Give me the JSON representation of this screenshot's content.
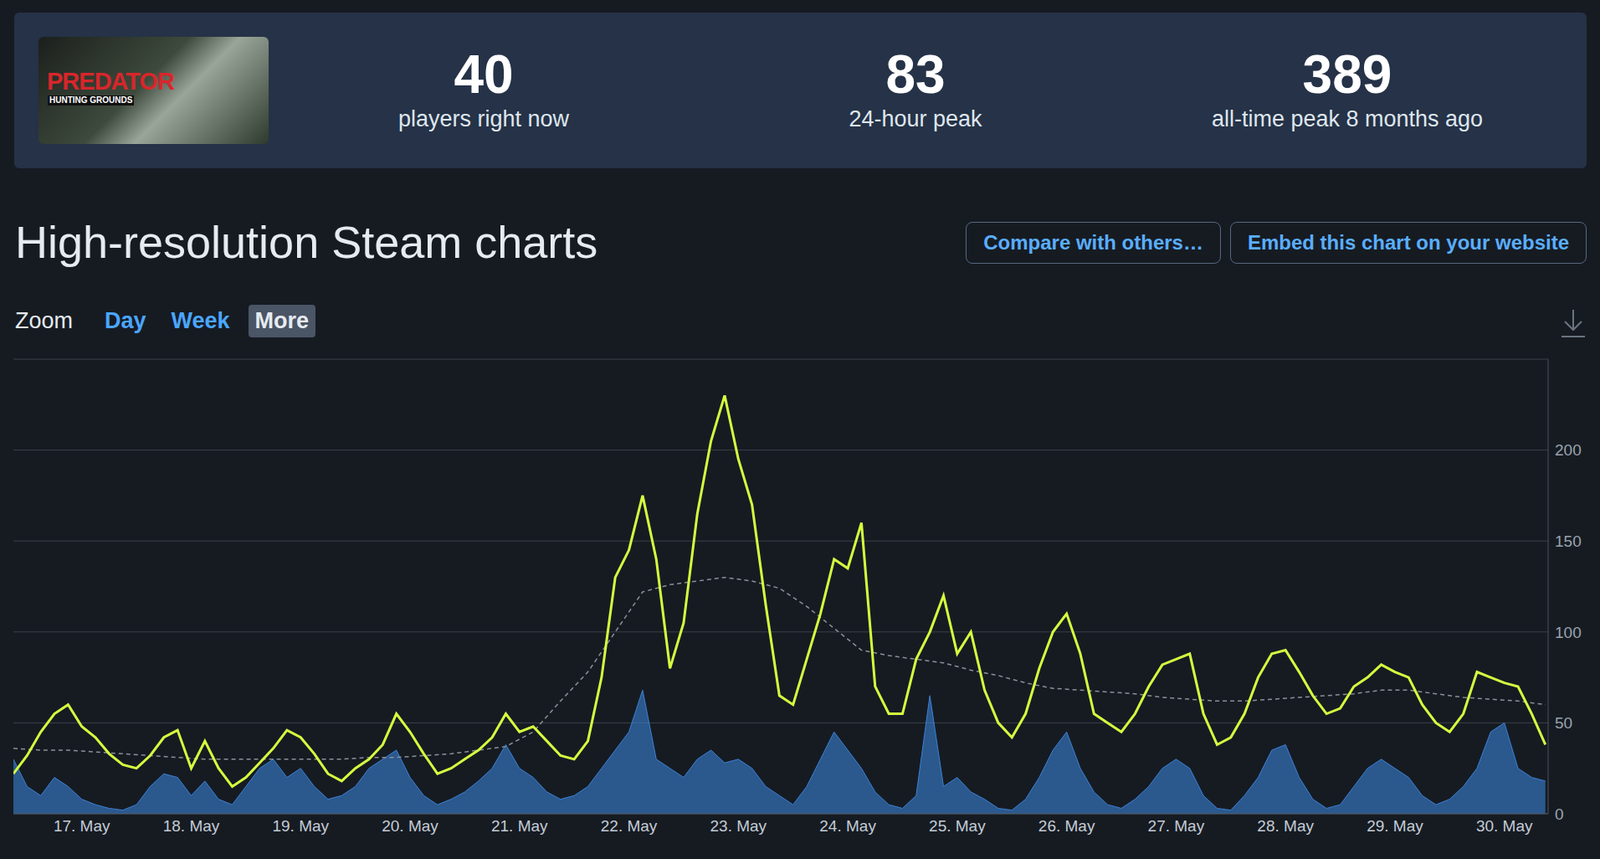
{
  "header": {
    "image_text": [
      "PREDATOR",
      "HUNTING GROUNDS"
    ],
    "stats": [
      {
        "value": 40,
        "label": "players right now"
      },
      {
        "value": 83,
        "label": "24-hour peak"
      },
      {
        "value": 389,
        "label": "all-time peak 8 months ago"
      }
    ]
  },
  "page": {
    "title": "High-resolution Steam charts",
    "buttons": [
      "Compare with others…",
      "Embed this chart on your website"
    ],
    "zoom_label": "Zoom",
    "zoom_options": [
      "Day",
      "Week",
      "More"
    ],
    "zoom_selected": "More"
  },
  "chart_data": {
    "type": "line",
    "x": [
      16.375,
      16.5,
      16.625,
      16.75,
      16.875,
      17,
      17.125,
      17.25,
      17.375,
      17.5,
      17.625,
      17.75,
      17.875,
      18,
      18.125,
      18.25,
      18.375,
      18.5,
      18.625,
      18.75,
      18.875,
      19,
      19.125,
      19.25,
      19.375,
      19.5,
      19.625,
      19.75,
      19.875,
      20,
      20.125,
      20.25,
      20.375,
      20.5,
      20.625,
      20.75,
      20.875,
      21,
      21.125,
      21.25,
      21.375,
      21.5,
      21.625,
      21.75,
      21.875,
      22,
      22.125,
      22.25,
      22.375,
      22.5,
      22.625,
      22.75,
      22.875,
      23,
      23.125,
      23.25,
      23.375,
      23.5,
      23.625,
      23.75,
      23.875,
      24,
      24.125,
      24.25,
      24.375,
      24.5,
      24.625,
      24.75,
      24.875,
      25,
      25.125,
      25.25,
      25.375,
      25.5,
      25.625,
      25.75,
      25.875,
      26,
      26.125,
      26.25,
      26.375,
      26.5,
      26.625,
      26.75,
      26.875,
      27,
      27.125,
      27.25,
      27.375,
      27.5,
      27.625,
      27.75,
      27.875,
      28,
      28.125,
      28.25,
      28.375,
      28.5,
      28.625,
      28.75,
      28.875,
      29,
      29.125,
      29.25,
      29.375,
      29.5,
      29.625,
      29.75,
      29.875,
      30,
      30.125,
      30.25,
      30.375
    ],
    "xlim": [
      16.375,
      30.4
    ],
    "xticks": [
      {
        "value": 17,
        "label": "17. May"
      },
      {
        "value": 18,
        "label": "18. May"
      },
      {
        "value": 19,
        "label": "19. May"
      },
      {
        "value": 20,
        "label": "20. May"
      },
      {
        "value": 21,
        "label": "21. May"
      },
      {
        "value": 22,
        "label": "22. May"
      },
      {
        "value": 23,
        "label": "23. May"
      },
      {
        "value": 24,
        "label": "24. May"
      },
      {
        "value": 25,
        "label": "25. May"
      },
      {
        "value": 26,
        "label": "26. May"
      },
      {
        "value": 27,
        "label": "27. May"
      },
      {
        "value": 28,
        "label": "28. May"
      },
      {
        "value": 29,
        "label": "29. May"
      },
      {
        "value": 30,
        "label": "30. May"
      }
    ],
    "ylim": [
      0,
      250
    ],
    "yticks": [
      0,
      50,
      100,
      150,
      200
    ],
    "grid": true,
    "series": [
      {
        "type": "area",
        "color": "#3b82d6",
        "values": [
          30,
          15,
          10,
          20,
          15,
          8,
          5,
          3,
          2,
          5,
          15,
          22,
          20,
          10,
          18,
          8,
          5,
          15,
          25,
          30,
          20,
          25,
          15,
          8,
          10,
          15,
          25,
          30,
          35,
          20,
          10,
          5,
          8,
          12,
          18,
          25,
          38,
          25,
          20,
          12,
          8,
          10,
          15,
          25,
          35,
          45,
          68,
          30,
          25,
          20,
          30,
          35,
          28,
          30,
          25,
          15,
          10,
          5,
          15,
          30,
          45,
          35,
          25,
          12,
          5,
          3,
          10,
          65,
          15,
          20,
          12,
          8,
          3,
          2,
          8,
          20,
          35,
          45,
          25,
          12,
          5,
          3,
          8,
          15,
          25,
          30,
          25,
          10,
          3,
          2,
          10,
          20,
          35,
          38,
          20,
          8,
          3,
          5,
          15,
          25,
          30,
          25,
          20,
          10,
          5,
          8,
          15,
          25,
          45,
          50,
          25,
          20,
          18
        ]
      },
      {
        "type": "line",
        "color": "#8a9099",
        "line_style": "dashed",
        "x": [
          16.375,
          16.625,
          16.875,
          17.125,
          17.375,
          17.625,
          17.875,
          18.125,
          18.375,
          18.625,
          18.875,
          19.125,
          19.375,
          19.625,
          19.875,
          20.125,
          20.375,
          20.625,
          20.875,
          21.125,
          21.375,
          21.625,
          21.875,
          22.125,
          22.375,
          22.625,
          22.875,
          23.125,
          23.375,
          23.625,
          23.875,
          24.125,
          24.375,
          24.625,
          24.875,
          25.125,
          25.375,
          25.625,
          25.875,
          26.125,
          26.375,
          26.625,
          26.875,
          27.125,
          27.375,
          27.625,
          27.875,
          28.125,
          28.375,
          28.625,
          28.875,
          29.125,
          29.375,
          29.625,
          29.875,
          30.125,
          30.375
        ],
        "values": [
          36,
          35,
          35,
          34,
          33,
          32,
          31,
          30,
          30,
          30,
          30,
          30,
          30,
          31,
          31,
          32,
          33,
          35,
          37,
          45,
          62,
          78,
          100,
          122,
          126,
          128,
          130,
          128,
          124,
          114,
          102,
          90,
          87,
          85,
          83,
          79,
          76,
          72,
          69,
          68,
          67,
          66,
          64,
          63,
          62,
          62,
          63,
          64,
          65,
          66,
          68,
          68,
          66,
          64,
          63,
          62,
          60
        ]
      },
      {
        "type": "line",
        "color": "#d6ff3f",
        "values": [
          22,
          32,
          45,
          55,
          60,
          48,
          42,
          33,
          27,
          25,
          32,
          42,
          46,
          25,
          40,
          25,
          15,
          20,
          28,
          36,
          46,
          42,
          33,
          22,
          18,
          25,
          30,
          38,
          55,
          45,
          33,
          22,
          25,
          30,
          35,
          42,
          55,
          45,
          48,
          40,
          32,
          30,
          40,
          75,
          130,
          145,
          175,
          140,
          80,
          105,
          165,
          205,
          230,
          195,
          170,
          115,
          65,
          60,
          85,
          110,
          140,
          135,
          160,
          70,
          55,
          55,
          85,
          100,
          120,
          88,
          100,
          68,
          50,
          42,
          55,
          80,
          100,
          110,
          88,
          55,
          50,
          45,
          55,
          70,
          82,
          85,
          88,
          55,
          38,
          42,
          55,
          75,
          88,
          90,
          78,
          65,
          55,
          58,
          70,
          75,
          82,
          78,
          75,
          60,
          50,
          45,
          55,
          78,
          75,
          72,
          70,
          55,
          38
        ]
      }
    ]
  }
}
